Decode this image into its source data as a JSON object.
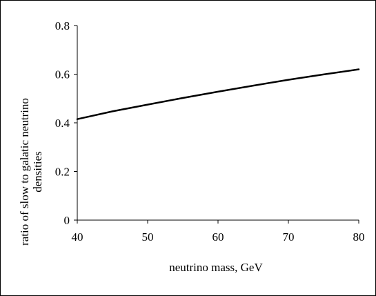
{
  "chart_data": {
    "type": "line",
    "title": "",
    "xlabel": "neutrino mass, GeV",
    "ylabel_lines": [
      "ratio of slow to galatic neutrino",
      "densities"
    ],
    "xlim": [
      40,
      80
    ],
    "ylim": [
      0,
      0.8
    ],
    "x_ticks": [
      40,
      50,
      60,
      70,
      80
    ],
    "y_ticks": [
      0,
      0.2,
      0.4,
      0.6,
      0.8
    ],
    "x_tick_labels": [
      "40",
      "50",
      "60",
      "70",
      "80"
    ],
    "y_tick_labels": [
      "0",
      "0.2",
      "0.4",
      "0.6",
      "0.8"
    ],
    "grid": false,
    "legend": "none",
    "series": [
      {
        "color": "#000000",
        "x": [
          40,
          45,
          50,
          55,
          60,
          65,
          70,
          75,
          80
        ],
        "y": [
          0.415,
          0.447,
          0.475,
          0.502,
          0.528,
          0.553,
          0.577,
          0.599,
          0.62
        ]
      }
    ]
  }
}
